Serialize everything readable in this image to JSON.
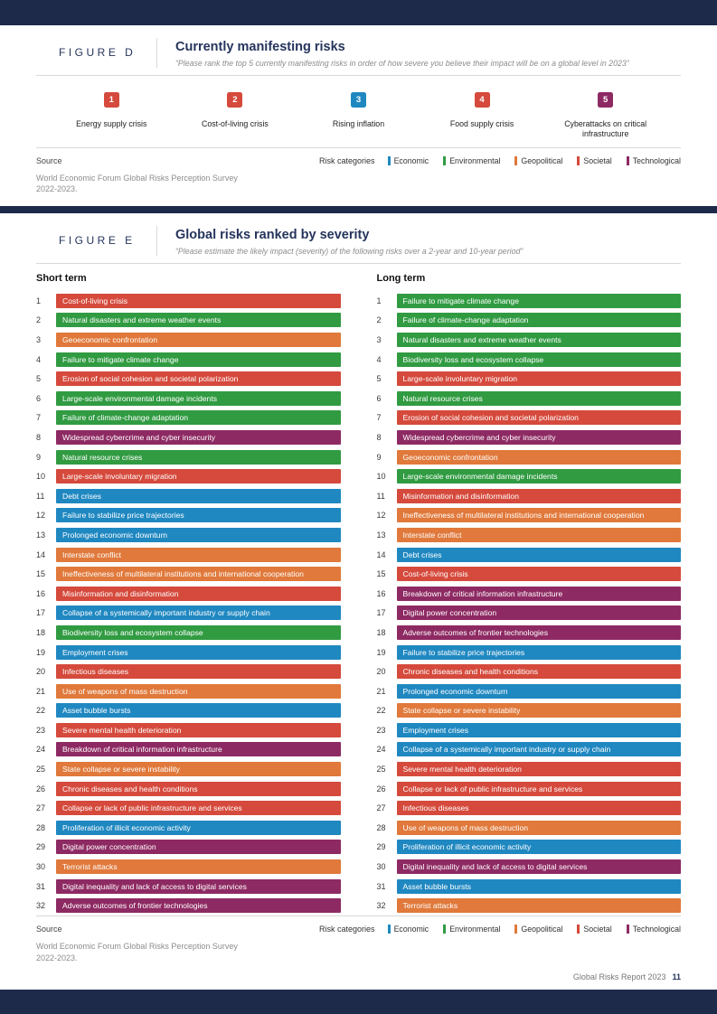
{
  "figures": {
    "d_label": "FIGURE D",
    "e_label": "FIGURE E"
  },
  "source": {
    "label": "Source",
    "text": "World Economic Forum Global Risks Perception Survey 2022-2023."
  },
  "legend": {
    "title": "Risk categories",
    "items": [
      {
        "label": "Economic",
        "category": "economic"
      },
      {
        "label": "Environmental",
        "category": "environmental"
      },
      {
        "label": "Geopolitical",
        "category": "geopolitical"
      },
      {
        "label": "Societal",
        "category": "societal"
      },
      {
        "label": "Technological",
        "category": "technological"
      }
    ]
  },
  "footer": {
    "report": "Global Risks Report 2023",
    "page": "11"
  },
  "colors": {
    "economic": "#2088c1",
    "environmental": "#319b42",
    "geopolitical": "#e0793b",
    "societal": "#d54a3c",
    "technological": "#8e2a63",
    "navy": "#1e2a49"
  },
  "chart_data": [
    {
      "type": "table",
      "title": "Currently manifesting risks",
      "subtitle": "“Please rank the top 5 currently manifesting risks in order of how severe you believe their impact will be on a global level in 2023”",
      "ranking": [
        {
          "rank": 1,
          "label": "Energy supply crisis",
          "category": "societal"
        },
        {
          "rank": 2,
          "label": "Cost-of-living crisis",
          "category": "societal"
        },
        {
          "rank": 3,
          "label": "Rising inflation",
          "category": "economic"
        },
        {
          "rank": 4,
          "label": "Food supply crisis",
          "category": "societal"
        },
        {
          "rank": 5,
          "label": "Cyberattacks on critical infrastructure",
          "category": "technological"
        }
      ]
    },
    {
      "type": "table",
      "title": "Global risks ranked by severity",
      "subtitle": "“Please estimate the likely impact (severity) of the following risks over a 2-year and 10-year period”",
      "series": [
        {
          "name": "Short term",
          "ranking": [
            {
              "rank": 1,
              "label": "Cost-of-living crisis",
              "category": "societal"
            },
            {
              "rank": 2,
              "label": "Natural disasters and extreme weather events",
              "category": "environmental"
            },
            {
              "rank": 3,
              "label": "Geoeconomic confrontation",
              "category": "geopolitical"
            },
            {
              "rank": 4,
              "label": "Failure to mitigate climate change",
              "category": "environmental"
            },
            {
              "rank": 5,
              "label": "Erosion of social cohesion and societal polarization",
              "category": "societal"
            },
            {
              "rank": 6,
              "label": "Large-scale environmental damage incidents",
              "category": "environmental"
            },
            {
              "rank": 7,
              "label": "Failure of climate-change adaptation",
              "category": "environmental"
            },
            {
              "rank": 8,
              "label": "Widespread cybercrime and cyber insecurity",
              "category": "technological"
            },
            {
              "rank": 9,
              "label": "Natural resource crises",
              "category": "environmental"
            },
            {
              "rank": 10,
              "label": "Large-scale involuntary migration",
              "category": "societal"
            },
            {
              "rank": 11,
              "label": "Debt crises",
              "category": "economic"
            },
            {
              "rank": 12,
              "label": "Failure to stabilize price trajectories",
              "category": "economic"
            },
            {
              "rank": 13,
              "label": "Prolonged economic downturn",
              "category": "economic"
            },
            {
              "rank": 14,
              "label": "Interstate conflict",
              "category": "geopolitical"
            },
            {
              "rank": 15,
              "label": "Ineffectiveness of multilateral institutions and international cooperation",
              "category": "geopolitical"
            },
            {
              "rank": 16,
              "label": "Misinformation and disinformation",
              "category": "societal"
            },
            {
              "rank": 17,
              "label": "Collapse of a systemically important industry or supply chain",
              "category": "economic"
            },
            {
              "rank": 18,
              "label": "Biodiversity loss and ecosystem collapse",
              "category": "environmental"
            },
            {
              "rank": 19,
              "label": "Employment crises",
              "category": "economic"
            },
            {
              "rank": 20,
              "label": "Infectious diseases",
              "category": "societal"
            },
            {
              "rank": 21,
              "label": "Use of weapons of mass destruction",
              "category": "geopolitical"
            },
            {
              "rank": 22,
              "label": "Asset bubble bursts",
              "category": "economic"
            },
            {
              "rank": 23,
              "label": "Severe mental health deterioration",
              "category": "societal"
            },
            {
              "rank": 24,
              "label": "Breakdown of critical information infrastructure",
              "category": "technological"
            },
            {
              "rank": 25,
              "label": "State collapse or severe instability",
              "category": "geopolitical"
            },
            {
              "rank": 26,
              "label": "Chronic diseases and health conditions",
              "category": "societal"
            },
            {
              "rank": 27,
              "label": "Collapse or lack of public infrastructure and services",
              "category": "societal"
            },
            {
              "rank": 28,
              "label": "Proliferation of illicit economic activity",
              "category": "economic"
            },
            {
              "rank": 29,
              "label": "Digital power concentration",
              "category": "technological"
            },
            {
              "rank": 30,
              "label": "Terrorist attacks",
              "category": "geopolitical"
            },
            {
              "rank": 31,
              "label": "Digital inequality and lack of access to digital services",
              "category": "technological"
            },
            {
              "rank": 32,
              "label": "Adverse outcomes of frontier technologies",
              "category": "technological"
            }
          ]
        },
        {
          "name": "Long term",
          "ranking": [
            {
              "rank": 1,
              "label": "Failure to mitigate climate change",
              "category": "environmental"
            },
            {
              "rank": 2,
              "label": "Failure of climate-change adaptation",
              "category": "environmental"
            },
            {
              "rank": 3,
              "label": "Natural disasters and extreme weather events",
              "category": "environmental"
            },
            {
              "rank": 4,
              "label": "Biodiversity loss and ecosystem collapse",
              "category": "environmental"
            },
            {
              "rank": 5,
              "label": "Large-scale involuntary migration",
              "category": "societal"
            },
            {
              "rank": 6,
              "label": "Natural resource crises",
              "category": "environmental"
            },
            {
              "rank": 7,
              "label": "Erosion of social cohesion and societal polarization",
              "category": "societal"
            },
            {
              "rank": 8,
              "label": "Widespread cybercrime and cyber insecurity",
              "category": "technological"
            },
            {
              "rank": 9,
              "label": "Geoeconomic confrontation",
              "category": "geopolitical"
            },
            {
              "rank": 10,
              "label": "Large-scale environmental damage incidents",
              "category": "environmental"
            },
            {
              "rank": 11,
              "label": "Misinformation and disinformation",
              "category": "societal"
            },
            {
              "rank": 12,
              "label": "Ineffectiveness of multilateral institutions and international cooperation",
              "category": "geopolitical"
            },
            {
              "rank": 13,
              "label": "Interstate conflict",
              "category": "geopolitical"
            },
            {
              "rank": 14,
              "label": "Debt crises",
              "category": "economic"
            },
            {
              "rank": 15,
              "label": "Cost-of-living crisis",
              "category": "societal"
            },
            {
              "rank": 16,
              "label": "Breakdown of critical information infrastructure",
              "category": "technological"
            },
            {
              "rank": 17,
              "label": "Digital power concentration",
              "category": "technological"
            },
            {
              "rank": 18,
              "label": "Adverse outcomes of frontier technologies",
              "category": "technological"
            },
            {
              "rank": 19,
              "label": "Failure to stabilize price trajectories",
              "category": "economic"
            },
            {
              "rank": 20,
              "label": "Chronic diseases and health conditions",
              "category": "societal"
            },
            {
              "rank": 21,
              "label": "Prolonged economic downturn",
              "category": "economic"
            },
            {
              "rank": 22,
              "label": "State collapse or severe instability",
              "category": "geopolitical"
            },
            {
              "rank": 23,
              "label": "Employment crises",
              "category": "economic"
            },
            {
              "rank": 24,
              "label": "Collapse of a systemically important industry or supply chain",
              "category": "economic"
            },
            {
              "rank": 25,
              "label": "Severe mental health deterioration",
              "category": "societal"
            },
            {
              "rank": 26,
              "label": "Collapse or lack of public infrastructure and services",
              "category": "societal"
            },
            {
              "rank": 27,
              "label": "Infectious diseases",
              "category": "societal"
            },
            {
              "rank": 28,
              "label": "Use of weapons of mass destruction",
              "category": "geopolitical"
            },
            {
              "rank": 29,
              "label": "Proliferation of illicit economic activity",
              "category": "economic"
            },
            {
              "rank": 30,
              "label": "Digital inequality and lack of access to digital services",
              "category": "technological"
            },
            {
              "rank": 31,
              "label": "Asset bubble bursts",
              "category": "economic"
            },
            {
              "rank": 32,
              "label": "Terrorist attacks",
              "category": "geopolitical"
            }
          ]
        }
      ]
    }
  ]
}
